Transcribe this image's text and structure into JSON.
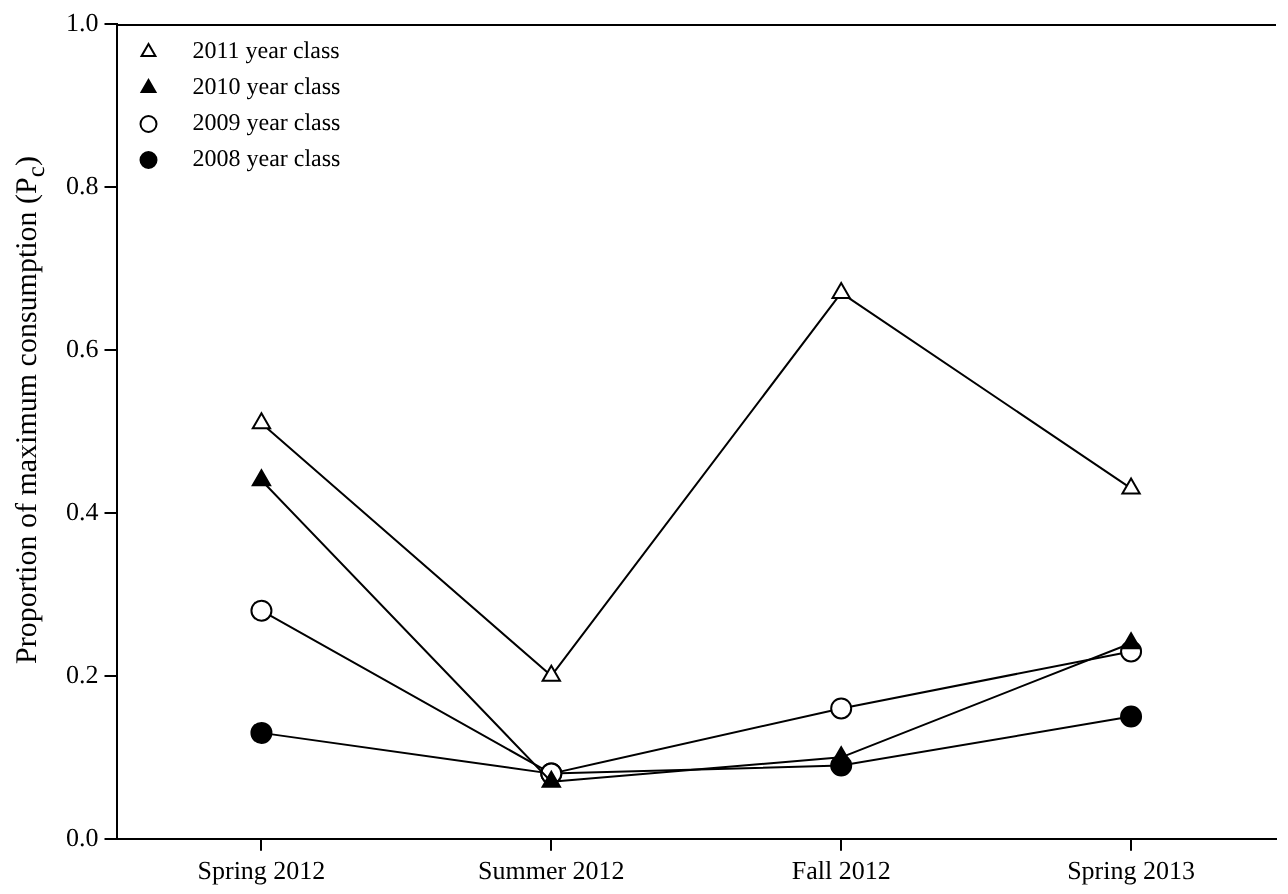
{
  "chart_data": {
    "type": "line",
    "ylabel": "Proportion of maximum consumption (P$_{c}$)",
    "categories": [
      "Spring 2012",
      "Summer 2012",
      "Fall 2012",
      "Spring 2013"
    ],
    "series": [
      {
        "name": "2011 year class",
        "color": "#000000",
        "marker": "triangle",
        "values": [
          0.51,
          0.2,
          0.67,
          0.43
        ]
      },
      {
        "name": "2010 year class",
        "color": "#000000",
        "marker": "triangle",
        "values": [
          0.44,
          0.07,
          0.1,
          0.24
        ]
      },
      {
        "name": "2009 year class",
        "color": "#000000",
        "marker": "circle",
        "values": [
          0.28,
          0.08,
          0.16,
          0.23
        ]
      },
      {
        "name": "2008 year class",
        "color": "#000000",
        "marker": "circle",
        "values": [
          0.13,
          0.08,
          0.09,
          0.15
        ]
      }
    ],
    "ylim": [
      0,
      1
    ],
    "yticks": [
      {
        "value": 0,
        "label": "0.0"
      },
      {
        "value": 0.2,
        "label": "0.2"
      },
      {
        "value": 0.4,
        "label": "0.4"
      },
      {
        "value": 0.6,
        "label": "0.6"
      },
      {
        "value": 0.8,
        "label": "0.8"
      },
      {
        "value": 1,
        "label": "1.0"
      }
    ],
    "grid": false,
    "legend": "top left",
    "line_style": "solid"
  }
}
